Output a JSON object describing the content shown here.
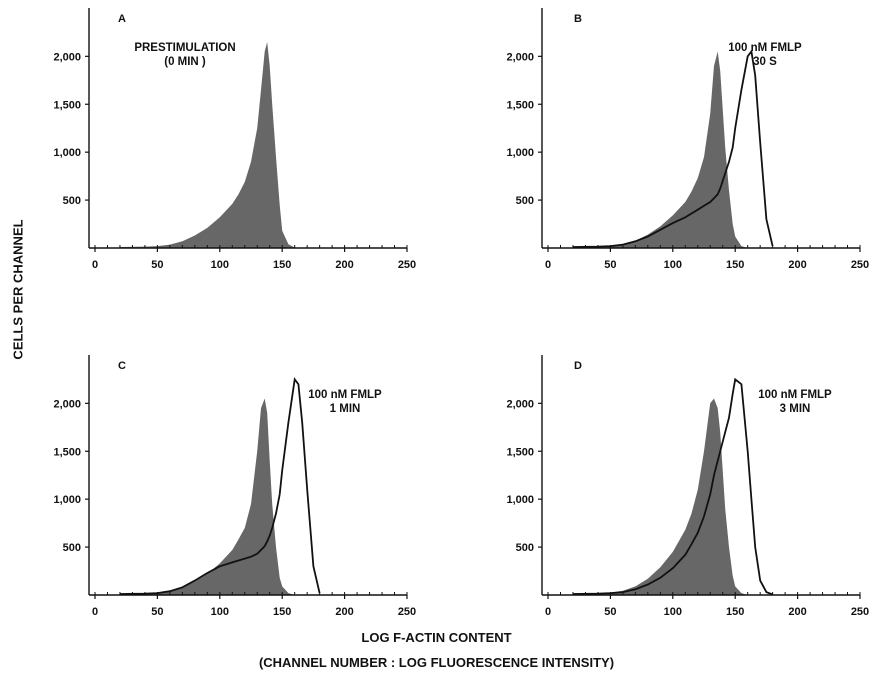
{
  "figure": {
    "ylabel": "CELLS PER CHANNEL",
    "xlabel": "LOG F-ACTIN CONTENT",
    "xlabel_sub": "(CHANNEL NUMBER : LOG FLUORESCENCE INTENSITY)"
  },
  "colors": {
    "fill": "#5a5a5a",
    "line": "#111111",
    "axis": "#111111"
  },
  "chart_data": [
    {
      "type": "area",
      "panel": "A",
      "annotation": [
        "PRESTIMULATION",
        "(0 MIN )"
      ],
      "xlim": [
        0,
        250
      ],
      "ylim": [
        0,
        2400
      ],
      "xticks": [
        0,
        50,
        100,
        150,
        200,
        250
      ],
      "xtick_labels": [
        "0",
        "50",
        "100",
        "150",
        "200",
        "250"
      ],
      "yticks": [
        500,
        1000,
        1500,
        2000
      ],
      "ytick_labels": [
        "500",
        "1,000",
        "1,500",
        "2,000"
      ],
      "x": [
        20,
        40,
        50,
        60,
        70,
        80,
        90,
        100,
        110,
        115,
        120,
        125,
        130,
        133,
        136,
        138,
        140,
        142,
        145,
        148,
        150,
        155,
        160
      ],
      "series": [
        {
          "role": "prestimulation (shaded)",
          "style": "fill",
          "values": [
            10,
            15,
            20,
            35,
            70,
            130,
            210,
            320,
            460,
            560,
            690,
            900,
            1250,
            1650,
            2050,
            2150,
            1900,
            1500,
            950,
            450,
            180,
            40,
            5
          ]
        }
      ]
    },
    {
      "type": "area",
      "panel": "B",
      "annotation": [
        "100 nM FMLP",
        "30 S"
      ],
      "xlim": [
        0,
        250
      ],
      "ylim": [
        0,
        2400
      ],
      "xticks": [
        0,
        50,
        100,
        150,
        200,
        250
      ],
      "xtick_labels": [
        "0",
        "50",
        "100",
        "150",
        "200",
        "250"
      ],
      "yticks": [
        500,
        1000,
        1500,
        2000
      ],
      "ytick_labels": [
        "500",
        "1,000",
        "1,500",
        "2,000"
      ],
      "x": [
        20,
        40,
        50,
        60,
        70,
        80,
        90,
        100,
        110,
        115,
        120,
        125,
        130,
        133,
        136,
        138,
        140,
        142,
        145,
        148,
        150,
        155,
        160,
        163,
        166,
        170,
        175,
        180
      ],
      "series": [
        {
          "role": "prestimulation (shaded)",
          "style": "fill",
          "values": [
            10,
            15,
            20,
            40,
            75,
            140,
            225,
            340,
            480,
            590,
            730,
            950,
            1400,
            1900,
            2050,
            1850,
            1450,
            1050,
            600,
            250,
            120,
            20,
            0,
            0,
            0,
            0,
            0,
            0
          ]
        },
        {
          "role": "stimulated (outline)",
          "style": "line",
          "values": [
            10,
            15,
            20,
            35,
            70,
            120,
            190,
            260,
            320,
            360,
            400,
            440,
            480,
            520,
            560,
            620,
            700,
            780,
            900,
            1050,
            1250,
            1650,
            2000,
            2050,
            1800,
            1100,
            300,
            20
          ]
        }
      ]
    },
    {
      "type": "area",
      "panel": "C",
      "annotation": [
        "100 nM FMLP",
        "1 MIN"
      ],
      "xlim": [
        0,
        250
      ],
      "ylim": [
        0,
        2400
      ],
      "xticks": [
        0,
        50,
        100,
        150,
        200,
        250
      ],
      "xtick_labels": [
        "0",
        "50",
        "100",
        "150",
        "200",
        "250"
      ],
      "yticks": [
        500,
        1000,
        1500,
        2000
      ],
      "ytick_labels": [
        "500",
        "1,000",
        "1,500",
        "2,000"
      ],
      "x": [
        20,
        40,
        50,
        60,
        70,
        80,
        90,
        100,
        110,
        115,
        120,
        125,
        130,
        133,
        136,
        138,
        140,
        142,
        145,
        148,
        150,
        155,
        160,
        163,
        166,
        170,
        175,
        180
      ],
      "series": [
        {
          "role": "prestimulation (shaded)",
          "style": "fill",
          "values": [
            10,
            15,
            25,
            45,
            80,
            140,
            220,
            330,
            470,
            580,
            700,
            950,
            1500,
            1950,
            2050,
            1900,
            1400,
            950,
            500,
            180,
            90,
            20,
            0,
            0,
            0,
            0,
            0,
            0
          ]
        },
        {
          "role": "stimulated (outline)",
          "style": "line",
          "values": [
            10,
            15,
            20,
            40,
            80,
            150,
            230,
            300,
            340,
            360,
            380,
            400,
            430,
            470,
            510,
            560,
            620,
            700,
            850,
            1050,
            1300,
            1800,
            2250,
            2200,
            1800,
            1100,
            300,
            20
          ]
        }
      ]
    },
    {
      "type": "area",
      "panel": "D",
      "annotation": [
        "100 nM FMLP",
        "3 MIN"
      ],
      "xlim": [
        0,
        250
      ],
      "ylim": [
        0,
        2400
      ],
      "xticks": [
        0,
        50,
        100,
        150,
        200,
        250
      ],
      "xtick_labels": [
        "0",
        "50",
        "100",
        "150",
        "200",
        "250"
      ],
      "yticks": [
        500,
        1000,
        1500,
        2000
      ],
      "ytick_labels": [
        "500",
        "1,000",
        "1,500",
        "2,000"
      ],
      "x": [
        20,
        40,
        50,
        60,
        70,
        80,
        90,
        100,
        110,
        115,
        120,
        125,
        130,
        133,
        136,
        138,
        140,
        142,
        145,
        148,
        150,
        155,
        160,
        163,
        166,
        170,
        175,
        180
      ],
      "series": [
        {
          "role": "prestimulation (shaded)",
          "style": "fill",
          "values": [
            10,
            15,
            25,
            45,
            90,
            170,
            290,
            450,
            680,
            850,
            1100,
            1500,
            2000,
            2050,
            1950,
            1700,
            1300,
            900,
            500,
            200,
            90,
            20,
            0,
            0,
            0,
            0,
            0,
            0
          ]
        },
        {
          "role": "stimulated (outline)",
          "style": "line",
          "values": [
            10,
            15,
            20,
            30,
            60,
            110,
            180,
            280,
            420,
            530,
            650,
            820,
            1050,
            1250,
            1400,
            1500,
            1600,
            1700,
            1850,
            2100,
            2250,
            2200,
            1500,
            1000,
            500,
            150,
            30,
            5
          ]
        }
      ]
    }
  ]
}
